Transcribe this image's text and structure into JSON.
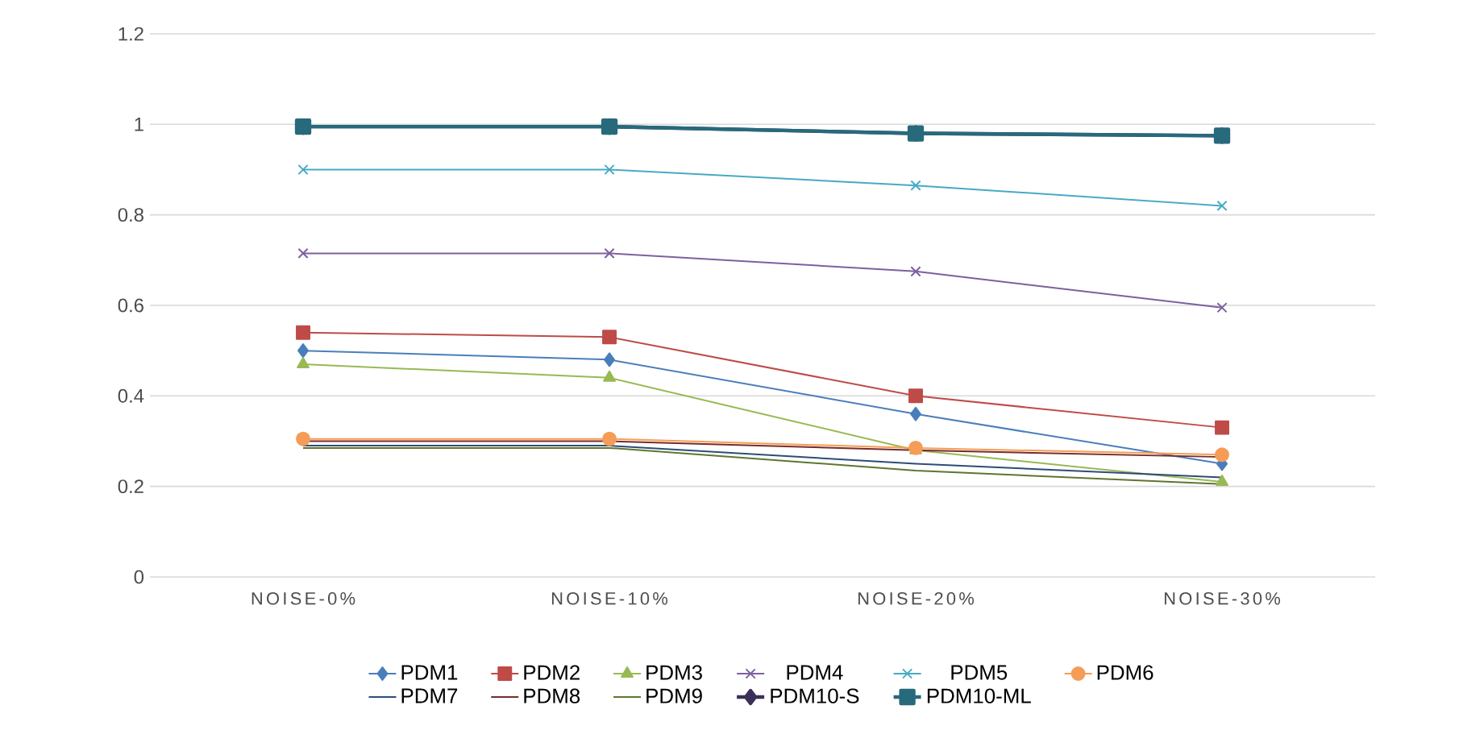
{
  "chart_data": {
    "type": "line",
    "categories": [
      "NOISE-0%",
      "NOISE-10%",
      "NOISE-20%",
      "NOISE-30%"
    ],
    "ylim": [
      0,
      1.2
    ],
    "yticks": [
      0,
      0.2,
      0.4,
      0.6,
      0.8,
      1,
      1.2
    ],
    "grid": "y",
    "legend": "bottom",
    "series": [
      {
        "name": "PDM1",
        "color": "#4a7ebb",
        "marker": "diamond",
        "values": [
          0.5,
          0.48,
          0.36,
          0.25
        ]
      },
      {
        "name": "PDM2",
        "color": "#be4b48",
        "marker": "square",
        "values": [
          0.54,
          0.53,
          0.4,
          0.33
        ]
      },
      {
        "name": "PDM3",
        "color": "#98b954",
        "marker": "triangle",
        "values": [
          0.47,
          0.44,
          0.28,
          0.21
        ]
      },
      {
        "name": "PDM4",
        "color": "#7d60a0",
        "marker": "cross",
        "values": [
          0.715,
          0.715,
          0.675,
          0.595
        ]
      },
      {
        "name": "PDM5",
        "color": "#46aac5",
        "marker": "cross",
        "values": [
          0.9,
          0.9,
          0.865,
          0.82
        ]
      },
      {
        "name": "PDM6",
        "color": "#f59d56",
        "marker": "circle",
        "values": [
          0.305,
          0.305,
          0.285,
          0.27
        ]
      },
      {
        "name": "PDM7",
        "color": "#2c4d75",
        "marker": "none",
        "values": [
          0.29,
          0.29,
          0.25,
          0.22
        ]
      },
      {
        "name": "PDM8",
        "color": "#772c2a",
        "marker": "none",
        "values": [
          0.3,
          0.3,
          0.28,
          0.265
        ]
      },
      {
        "name": "PDM9",
        "color": "#5f7530",
        "marker": "none",
        "values": [
          0.285,
          0.285,
          0.235,
          0.205
        ]
      },
      {
        "name": "PDM10-S",
        "color": "#3b3057",
        "marker": "diamond",
        "values": [
          0.995,
          0.995,
          0.98,
          0.975
        ]
      },
      {
        "name": "PDM10-ML",
        "color": "#276a7c",
        "marker": "square",
        "values": [
          0.995,
          0.995,
          0.98,
          0.975
        ]
      }
    ]
  }
}
